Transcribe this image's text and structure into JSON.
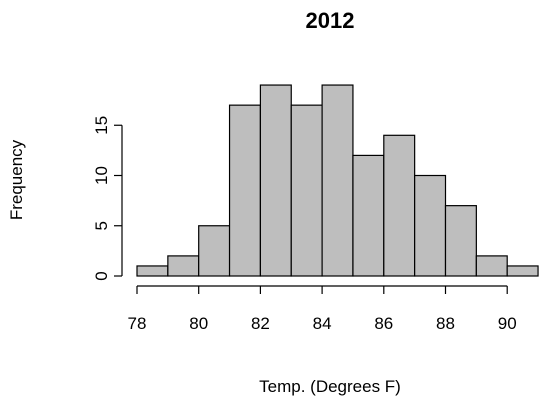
{
  "chart_data": {
    "type": "bar",
    "title": "2012",
    "xlabel": "Temp. (Degrees F)",
    "ylabel": "Frequency",
    "bin_edges": [
      78,
      79,
      80,
      81,
      82,
      83,
      84,
      85,
      86,
      87,
      88,
      89,
      90,
      91
    ],
    "values": [
      1,
      2,
      5,
      17,
      19,
      17,
      19,
      12,
      14,
      10,
      7,
      2,
      1
    ],
    "xlim": [
      78,
      91
    ],
    "ylim": [
      0,
      19
    ],
    "x_ticks": [
      78,
      80,
      82,
      84,
      86,
      88,
      90
    ],
    "y_ticks": [
      0,
      5,
      10,
      15
    ],
    "bar_color": "#bebebe",
    "grid": false,
    "legend": "none"
  }
}
